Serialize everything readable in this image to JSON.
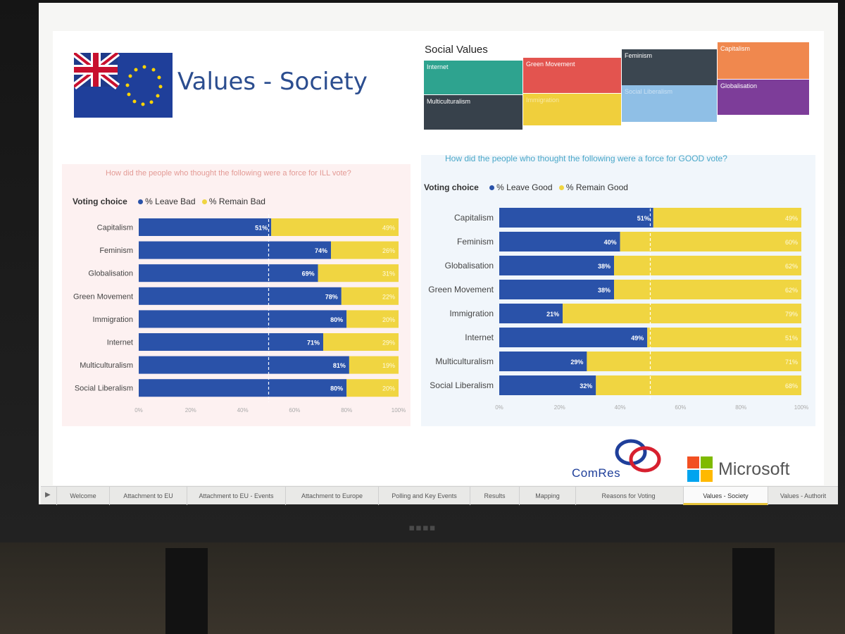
{
  "slide": {
    "title": "Values - Society"
  },
  "treemap": {
    "title": "Social Values",
    "cells": [
      {
        "label": "Internet",
        "color": "#2ea38f"
      },
      {
        "label": "Green Movement",
        "color": "#e3544f"
      },
      {
        "label": "Feminism",
        "color": "#3b4650"
      },
      {
        "label": "Capitalism",
        "color": "#f0884e"
      },
      {
        "label": "Multiculturalism",
        "color": "#37414b"
      },
      {
        "label": "Immigration",
        "color": "#f0cf3c"
      },
      {
        "label": "Social Liberalism",
        "color": "#8fbfe6"
      },
      {
        "label": "Globalisation",
        "color": "#7d3d99"
      }
    ]
  },
  "colors": {
    "leave": "#2a52a9",
    "remain": "#f0d541",
    "bad_question": "#e39a95",
    "good_question": "#4aa8c9"
  },
  "chart_data": [
    {
      "type": "bar",
      "stacked": true,
      "orientation": "horizontal",
      "title": "How did the people who thought the following were a force for ILL vote?",
      "legend_title": "Voting choice",
      "categories": [
        "Capitalism",
        "Feminism",
        "Globalisation",
        "Green Movement",
        "Immigration",
        "Internet",
        "Multiculturalism",
        "Social Liberalism"
      ],
      "series": [
        {
          "name": "% Leave Bad",
          "values": [
            51,
            74,
            69,
            78,
            80,
            71,
            81,
            80
          ],
          "labels": [
            "51%",
            "74%",
            "69%",
            "78%",
            "80%",
            "71%",
            "81%",
            "80%"
          ]
        },
        {
          "name": "% Remain Bad",
          "values": [
            49,
            26,
            31,
            22,
            20,
            29,
            19,
            20
          ],
          "labels": [
            "49%",
            "26%",
            "31%",
            "22%",
            "20%",
            "29%",
            "19%",
            "20%"
          ]
        }
      ],
      "xlim": [
        0,
        100
      ],
      "xticks": [
        "0%",
        "20%",
        "40%",
        "60%",
        "80%",
        "100%"
      ]
    },
    {
      "type": "bar",
      "stacked": true,
      "orientation": "horizontal",
      "title": "How did the people who thought the following were a force for GOOD vote?",
      "legend_title": "Voting choice",
      "categories": [
        "Capitalism",
        "Feminism",
        "Globalisation",
        "Green Movement",
        "Immigration",
        "Internet",
        "Multiculturalism",
        "Social Liberalism"
      ],
      "series": [
        {
          "name": "% Leave Good",
          "values": [
            51,
            40,
            38,
            38,
            21,
            49,
            29,
            32
          ],
          "labels": [
            "51%",
            "40%",
            "38%",
            "38%",
            "21%",
            "49%",
            "29%",
            "32%"
          ]
        },
        {
          "name": "% Remain Good",
          "values": [
            49,
            60,
            62,
            62,
            79,
            51,
            71,
            68
          ],
          "labels": [
            "49%",
            "60%",
            "62%",
            "62%",
            "79%",
            "51%",
            "71%",
            "68%"
          ]
        }
      ],
      "xlim": [
        0,
        100
      ],
      "xticks": [
        "0%",
        "20%",
        "40%",
        "60%",
        "80%",
        "100%"
      ]
    }
  ],
  "logos": {
    "comres": "ComRes",
    "microsoft": "Microsoft"
  },
  "tabs": [
    {
      "label": "Welcome",
      "active": false
    },
    {
      "label": "Attachment to EU",
      "active": false
    },
    {
      "label": "Attachment to EU - Events",
      "active": false
    },
    {
      "label": "Attachment to Europe",
      "active": false
    },
    {
      "label": "Polling and Key Events",
      "active": false
    },
    {
      "label": "Results",
      "active": false
    },
    {
      "label": "Mapping",
      "active": false
    },
    {
      "label": "Reasons for Voting",
      "active": false
    },
    {
      "label": "Values - Society",
      "active": true
    },
    {
      "label": "Values - Authorit",
      "active": false
    }
  ]
}
